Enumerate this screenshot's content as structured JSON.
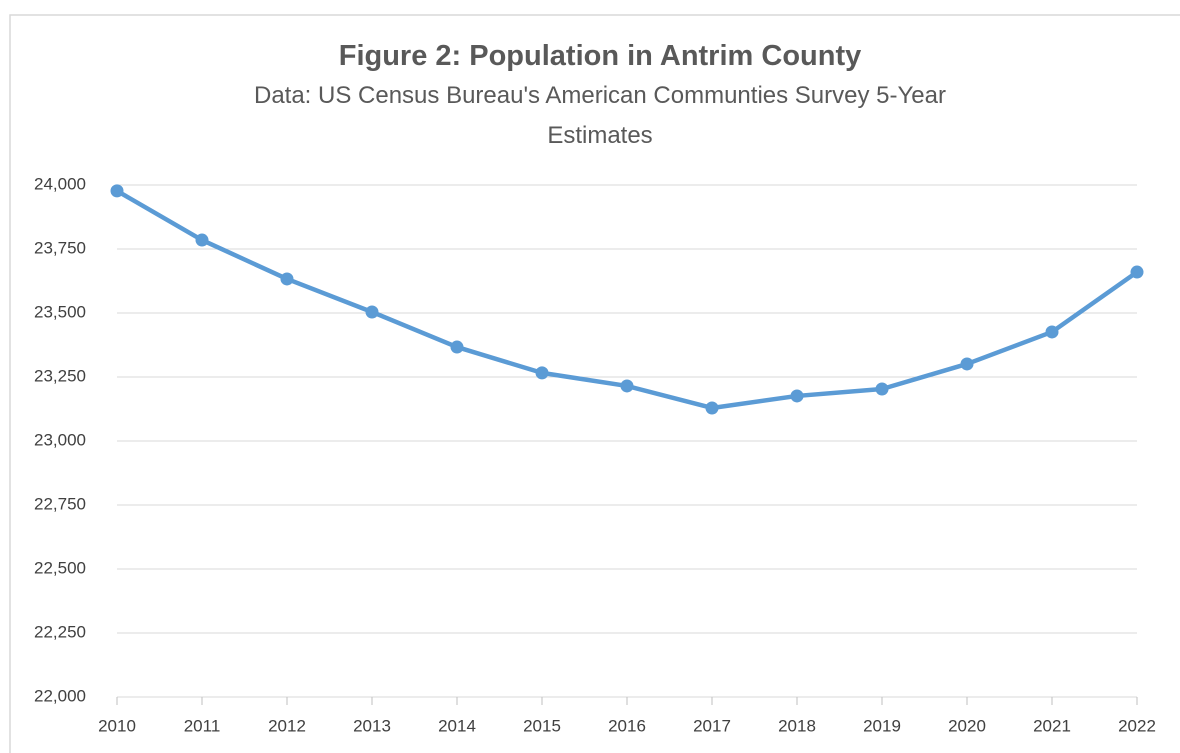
{
  "chart_data": {
    "type": "line",
    "title": "Figure 2: Population in Antrim County",
    "subtitle": "Data: US Census Bureau's American Communties Survey 5-Year Estimates",
    "categories": [
      "2010",
      "2011",
      "2012",
      "2013",
      "2014",
      "2015",
      "2016",
      "2017",
      "2018",
      "2019",
      "2020",
      "2021",
      "2022"
    ],
    "series": [
      {
        "name": "Population",
        "color": "#5b9bd5",
        "values": [
          23977,
          23785,
          23633,
          23504,
          23367,
          23266,
          23215,
          23129,
          23176,
          23203,
          23301,
          23426,
          23660
        ]
      }
    ],
    "ylim": [
      22000,
      24000
    ],
    "yticks": [
      {
        "value": 22000,
        "label": "22,000"
      },
      {
        "value": 22250,
        "label": "22,250"
      },
      {
        "value": 22500,
        "label": "22,500"
      },
      {
        "value": 22750,
        "label": "22,750"
      },
      {
        "value": 23000,
        "label": "23,000"
      },
      {
        "value": 23250,
        "label": "23,250"
      },
      {
        "value": 23500,
        "label": "23,500"
      },
      {
        "value": 23750,
        "label": "23,750"
      },
      {
        "value": 24000,
        "label": "24,000"
      }
    ],
    "grid": true
  }
}
